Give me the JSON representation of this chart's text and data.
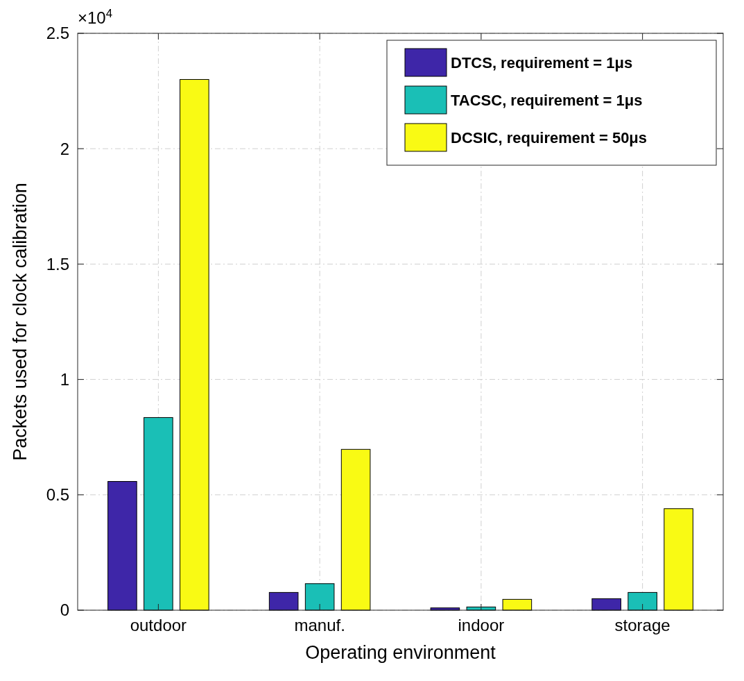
{
  "chart_data": {
    "type": "bar",
    "xlabel": "Operating environment",
    "ylabel": "Packets used for clock calibration",
    "categories": [
      "outdoor",
      "manuf.",
      "indoor",
      "storage"
    ],
    "series": [
      {
        "name": "DTCS, requirement = 1μs",
        "color": "#3e26a8",
        "values": [
          0.558,
          0.077,
          0.01,
          0.05
        ]
      },
      {
        "name": "TACSC, requirement = 1μs",
        "color": "#1abfb6",
        "values": [
          0.835,
          0.115,
          0.014,
          0.077
        ]
      },
      {
        "name": "DCSIC, requirement = 50μs",
        "color": "#f9fa14",
        "values": [
          2.3,
          0.697,
          0.047,
          0.44
        ]
      }
    ],
    "ylim": [
      0,
      2.5
    ],
    "yticks": [
      0,
      0.5,
      1,
      1.5,
      2,
      2.5
    ],
    "annotations": [
      "×10$^{4}$"
    ],
    "grid": true,
    "legend": "top right"
  }
}
